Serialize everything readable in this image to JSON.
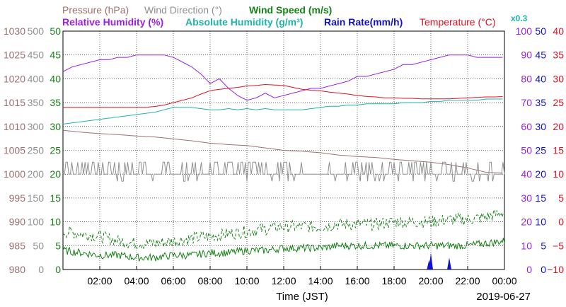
{
  "legend": [
    {
      "text": "Pressure (hPa)",
      "color": "#a07070"
    },
    {
      "text": "Wind Direction (°)",
      "color": "#909090"
    },
    {
      "text": "Wind Speed (m/s)",
      "color": "#158215"
    },
    {
      "text": "Relative Humidity (%)",
      "color": "#9a1fe0"
    },
    {
      "text": "Absolute Humidity (g/m³)",
      "color": "#20b2aa"
    },
    {
      "text": "Rain Rate(mm/h)",
      "color": "#1010d0"
    },
    {
      "text": "Temperature (°C)",
      "color": "#e01020"
    },
    {
      "text": "x0.3",
      "color": "#20b2aa"
    }
  ],
  "xlabel": "Time (JST)",
  "date": "2019-06-27",
  "chart_data": {
    "type": "line",
    "x_range": [
      "00:00",
      "24:00"
    ],
    "x_ticks": [
      "02:00",
      "04:00",
      "06:00",
      "08:00",
      "10:00",
      "12:00",
      "14:00",
      "16:00",
      "18:00",
      "20:00",
      "22:00",
      "00:00"
    ],
    "axes": [
      {
        "name": "Pressure (hPa)",
        "side": "left",
        "color": "#a07070",
        "range": [
          980,
          1030
        ],
        "ticks": [
          "1030",
          "1025",
          "1020",
          "1015",
          "1010",
          "1005",
          "1000",
          "995",
          "990",
          "985",
          "980"
        ]
      },
      {
        "name": "Wind Direction (°)",
        "side": "left",
        "color": "#909090",
        "range": [
          0,
          500
        ],
        "ticks": [
          "500",
          "450",
          "400",
          "350",
          "300",
          "250",
          "200",
          "150",
          "100",
          "50",
          "0"
        ]
      },
      {
        "name": "Wind Speed (m/s)",
        "side": "left",
        "color": "#158215",
        "range": [
          0,
          50
        ],
        "ticks": [
          "50",
          "45",
          "40",
          "35",
          "30",
          "25",
          "20",
          "15",
          "10",
          "5",
          "0"
        ]
      },
      {
        "name": "Relative Humidity (%)",
        "side": "right",
        "color": "#9a1fe0",
        "range": [
          0,
          100
        ],
        "ticks": [
          "100",
          "90",
          "80",
          "70",
          "60",
          "50",
          "40",
          "30",
          "20",
          "10",
          "0"
        ]
      },
      {
        "name": "Rain Rate (mm/h)",
        "side": "right",
        "color": "#1010d0",
        "range": [
          0,
          50
        ],
        "ticks": [
          "50",
          "45",
          "40",
          "35",
          "30",
          "25",
          "20",
          "15",
          "10",
          "5",
          "0"
        ]
      },
      {
        "name": "Temperature (°C)",
        "side": "right",
        "color": "#e01020",
        "range": [
          -10,
          40
        ],
        "ticks": [
          "40",
          "35",
          "30",
          "25",
          "20",
          "15",
          "10",
          "5",
          "0",
          "−5",
          "−10"
        ]
      }
    ],
    "grid": true,
    "legend_position": "top",
    "series": [
      {
        "name": "Relative Humidity (%)",
        "axis": "Relative Humidity (%)",
        "color": "#9a1fe0",
        "x": [
          0,
          0.5,
          1,
          1.5,
          2,
          2.5,
          3,
          3.5,
          4,
          4.5,
          5,
          5.5,
          6,
          6.5,
          7,
          7.5,
          8,
          8.5,
          9,
          9.5,
          10,
          10.5,
          11,
          11.5,
          12,
          12.5,
          13,
          13.5,
          14,
          14.5,
          15,
          15.5,
          16,
          16.5,
          17,
          17.5,
          18,
          18.5,
          19,
          19.5,
          20,
          20.5,
          21,
          21.5,
          22,
          22.5,
          23,
          23.5,
          24
        ],
        "y": [
          83,
          85,
          86,
          87,
          88,
          88,
          89,
          89,
          90,
          90,
          90,
          90,
          89,
          87,
          85,
          82,
          78,
          80,
          76,
          73,
          71,
          72,
          74,
          72,
          73,
          74,
          75,
          76,
          76,
          77,
          78,
          79,
          81,
          81,
          82,
          83,
          84,
          86,
          86,
          87,
          88,
          89,
          90,
          90,
          90,
          89,
          89,
          89,
          89
        ]
      },
      {
        "name": "Temperature (°C)",
        "axis": "Temperature (°C)",
        "color": "#e01020",
        "x": [
          0,
          0.5,
          1,
          1.5,
          2,
          2.5,
          3,
          3.5,
          4,
          4.5,
          5,
          5.5,
          6,
          6.5,
          7,
          7.5,
          8,
          8.5,
          9,
          9.5,
          10,
          10.5,
          11,
          11.5,
          12,
          12.5,
          13,
          13.5,
          14,
          14.5,
          15,
          15.5,
          16,
          16.5,
          17,
          17.5,
          18,
          18.5,
          19,
          19.5,
          20,
          20.5,
          21,
          21.5,
          22,
          22.5,
          23,
          23.5,
          24
        ],
        "y": [
          24,
          24,
          24,
          24,
          24,
          24,
          24,
          24,
          24,
          24,
          24.2,
          24.5,
          25,
          25.5,
          26,
          26.8,
          27.5,
          27.8,
          28,
          28.2,
          28.5,
          28.6,
          28.8,
          28.7,
          28.6,
          28.2,
          27.8,
          27.6,
          27.5,
          27.2,
          27,
          26.8,
          26.5,
          26.3,
          26.2,
          26,
          26,
          25.9,
          25.9,
          25.8,
          25.8,
          25.8,
          25.8,
          25.9,
          26,
          26.1,
          26.2,
          26.2,
          26.3
        ]
      },
      {
        "name": "Absolute Humidity (g/m³) x0.3",
        "axis": "Relative Humidity (%)",
        "color": "#20b2aa",
        "x": [
          0,
          0.5,
          1,
          1.5,
          2,
          2.5,
          3,
          3.5,
          4,
          4.5,
          5,
          5.5,
          6,
          6.5,
          7,
          7.5,
          8,
          8.5,
          9,
          9.5,
          10,
          10.5,
          11,
          11.5,
          12,
          12.5,
          13,
          13.5,
          14,
          14.5,
          15,
          15.5,
          16,
          16.5,
          17,
          17.5,
          18,
          18.5,
          19,
          19.5,
          20,
          20.5,
          21,
          21.5,
          22,
          22.5,
          23,
          23.5,
          24
        ],
        "y": [
          61,
          61.5,
          62,
          62.5,
          63,
          63.5,
          64,
          64.5,
          65,
          65.5,
          66,
          67,
          68,
          68,
          68,
          67.5,
          67,
          67,
          67.5,
          67,
          67.5,
          67,
          67.5,
          67,
          67,
          67,
          67,
          67.5,
          68,
          68.5,
          68.5,
          69,
          69,
          69.5,
          69.5,
          69.5,
          69.5,
          70,
          70,
          70,
          70.5,
          70.5,
          71,
          71,
          71,
          71,
          71.5,
          71.5,
          71.5
        ]
      },
      {
        "name": "Pressure (hPa)",
        "axis": "Pressure (hPa)",
        "color": "#a07070",
        "x": [
          0,
          1,
          2,
          3,
          4,
          5,
          6,
          7,
          8,
          9,
          10,
          11,
          12,
          13,
          14,
          15,
          16,
          17,
          18,
          19,
          20,
          21,
          22,
          23,
          24
        ],
        "y": [
          1009.2,
          1008.8,
          1008.5,
          1008.3,
          1008,
          1007.8,
          1007.4,
          1007,
          1006.5,
          1006.2,
          1006,
          1005.5,
          1005,
          1004.8,
          1004.5,
          1004,
          1003.7,
          1003.5,
          1003.1,
          1002.8,
          1002.5,
          1002,
          1001.3,
          1000.4,
          1000.2
        ]
      },
      {
        "name": "Wind Direction (°)",
        "axis": "Wind Direction (°)",
        "color": "#909090",
        "base": 200,
        "spike": 225,
        "dip": 185,
        "spike_rate": 0.3,
        "dip_rate": 0.1,
        "x_range": [
          0,
          24
        ]
      },
      {
        "name": "Wind Speed (m/s) gust",
        "axis": "Wind Speed (m/s)",
        "color": "#158215",
        "dashed": true,
        "x": [
          0,
          1,
          2,
          3,
          4,
          5,
          6,
          7,
          8,
          9,
          10,
          11,
          12,
          13,
          14,
          15,
          16,
          17,
          18,
          19,
          20,
          21,
          22,
          23,
          24
        ],
        "y": [
          8,
          7.5,
          7,
          6,
          5.5,
          5.5,
          6,
          6.5,
          7,
          7.5,
          8,
          8.5,
          9,
          9,
          9,
          9.5,
          9.5,
          9.5,
          10,
          10,
          10,
          10.5,
          10.5,
          11,
          12
        ],
        "jitter": 1.3
      },
      {
        "name": "Wind Speed (m/s)",
        "axis": "Wind Speed (m/s)",
        "color": "#158215",
        "x": [
          0,
          1,
          2,
          3,
          4,
          5,
          6,
          7,
          8,
          9,
          10,
          11,
          12,
          13,
          14,
          15,
          16,
          17,
          18,
          19,
          20,
          21,
          22,
          23,
          24
        ],
        "y": [
          4,
          3.5,
          3,
          3,
          2.5,
          2.5,
          3,
          3,
          3.5,
          3.5,
          4,
          4,
          4.5,
          4.5,
          4.5,
          5,
          5,
          5,
          5,
          5,
          5,
          5,
          5,
          5.5,
          6
        ],
        "jitter": 0.8
      },
      {
        "name": "Rain Rate (mm/h)",
        "axis": "Rain Rate (mm/h)",
        "color": "#1010d0",
        "type": "bar",
        "x": [
          19.9,
          20.0,
          21.0
        ],
        "y": [
          2,
          3.5,
          2.5
        ]
      }
    ]
  }
}
